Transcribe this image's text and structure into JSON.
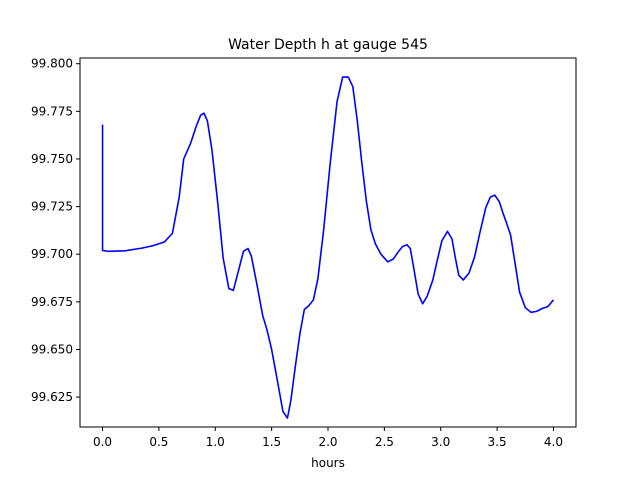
{
  "chart_data": {
    "type": "line",
    "title": "Water Depth h at gauge 545",
    "xlabel": "hours",
    "ylabel": "",
    "xlim": [
      -0.2,
      4.2
    ],
    "ylim": [
      99.6093,
      99.803
    ],
    "xticks": [
      0.0,
      0.5,
      1.0,
      1.5,
      2.0,
      2.5,
      3.0,
      3.5,
      4.0
    ],
    "xtick_labels": [
      "0.0",
      "0.5",
      "1.0",
      "1.5",
      "2.0",
      "2.5",
      "3.0",
      "3.5",
      "4.0"
    ],
    "yticks": [
      99.625,
      99.65,
      99.675,
      99.7,
      99.725,
      99.75,
      99.775,
      99.8
    ],
    "ytick_labels": [
      "99.625",
      "99.650",
      "99.675",
      "99.700",
      "99.725",
      "99.750",
      "99.775",
      "99.800"
    ],
    "grid": false,
    "series": [
      {
        "color": "#0000ff",
        "x": [
          0.0,
          0.0,
          0.05,
          0.2,
          0.35,
          0.45,
          0.55,
          0.62,
          0.68,
          0.72,
          0.78,
          0.83,
          0.87,
          0.9,
          0.93,
          0.97,
          1.02,
          1.07,
          1.12,
          1.16,
          1.2,
          1.25,
          1.29,
          1.32,
          1.37,
          1.42,
          1.46,
          1.5,
          1.55,
          1.6,
          1.64,
          1.67,
          1.71,
          1.75,
          1.79,
          1.83,
          1.87,
          1.91,
          1.96,
          2.02,
          2.08,
          2.13,
          2.18,
          2.22,
          2.26,
          2.3,
          2.34,
          2.38,
          2.42,
          2.47,
          2.53,
          2.58,
          2.62,
          2.66,
          2.7,
          2.73,
          2.76,
          2.8,
          2.84,
          2.88,
          2.93,
          2.97,
          3.01,
          3.06,
          3.1,
          3.13,
          3.16,
          3.2,
          3.25,
          3.3,
          3.35,
          3.4,
          3.44,
          3.48,
          3.52,
          3.55,
          3.58,
          3.62,
          3.66,
          3.7,
          3.75,
          3.8,
          3.85,
          3.9,
          3.95,
          4.0
        ],
        "y": [
          99.768,
          99.702,
          99.7015,
          99.7018,
          99.7032,
          99.7045,
          99.7065,
          99.711,
          99.73,
          99.75,
          99.758,
          99.767,
          99.773,
          99.774,
          99.77,
          99.755,
          99.728,
          99.698,
          99.682,
          99.681,
          99.69,
          99.7015,
          99.703,
          99.699,
          99.684,
          99.668,
          99.66,
          99.65,
          99.634,
          99.6175,
          99.614,
          99.623,
          99.641,
          99.658,
          99.671,
          99.673,
          99.676,
          99.687,
          99.712,
          99.748,
          99.78,
          99.793,
          99.793,
          99.788,
          99.77,
          99.748,
          99.728,
          99.713,
          99.7055,
          99.7,
          99.696,
          99.6975,
          99.701,
          99.704,
          99.705,
          99.703,
          99.693,
          99.679,
          99.674,
          99.678,
          99.6865,
          99.697,
          99.707,
          99.712,
          99.708,
          99.698,
          99.689,
          99.6865,
          99.69,
          99.6985,
          99.712,
          99.7245,
          99.73,
          99.731,
          99.7275,
          99.722,
          99.717,
          99.71,
          99.695,
          99.68,
          99.672,
          99.6695,
          99.67,
          99.6715,
          99.6725,
          99.676
        ]
      }
    ]
  }
}
